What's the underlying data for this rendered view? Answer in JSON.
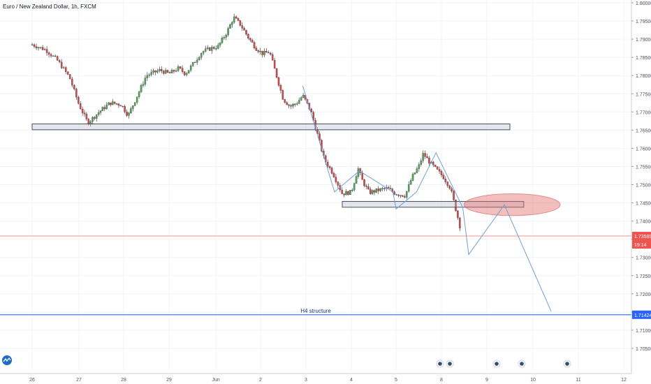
{
  "chart_data": {
    "type": "candlestick",
    "title": "Euro / New Zealand Dollar, 1h, FXCM",
    "xlabel": "",
    "ylabel": "",
    "ylim": [
      1.7025,
      1.8
    ],
    "grid": true,
    "y_ticks": [
      "1.80000",
      "1.79500",
      "1.79000",
      "1.78500",
      "1.78000",
      "1.77500",
      "1.77000",
      "1.76500",
      "1.76000",
      "1.75500",
      "1.75000",
      "1.74500",
      "1.74000",
      "1.73500",
      "1.73000",
      "1.72500",
      "1.72000",
      "1.71500",
      "1.71000",
      "1.70500"
    ],
    "x_ticks": [
      "26",
      "27",
      "28",
      "29",
      "Jun",
      "2",
      "3",
      "4",
      "5",
      "8",
      "9",
      "10",
      "11",
      "12"
    ],
    "last_price": "1.73589",
    "countdown": "19:14",
    "level_price": "1.71424",
    "annotation": "H4 structure",
    "zones": [
      {
        "from_day": 25.0,
        "to_day": 35.5,
        "y_low": 1.7651,
        "y_high": 1.7667
      },
      {
        "from_day": 31.8,
        "to_day": 35.8,
        "y_low": 1.7438,
        "y_high": 1.7454
      }
    ],
    "target_zone": {
      "from_day": 34.5,
      "to_day": 36.6,
      "y_low": 1.7415,
      "y_high": 1.7475
    },
    "horizontal_level": 1.71424,
    "projection_path": [
      [
        30.93,
        1.7772
      ],
      [
        31.63,
        1.748
      ],
      [
        32.18,
        1.7538
      ],
      [
        32.93,
        1.748
      ],
      [
        33.0,
        1.7433
      ],
      [
        33.45,
        1.748
      ],
      [
        33.88,
        1.7588
      ],
      [
        34.47,
        1.7437
      ],
      [
        34.6,
        1.7308
      ],
      [
        35.38,
        1.7445
      ],
      [
        36.4,
        1.7152
      ]
    ],
    "candle_path": [
      [
        25.0,
        1.7885
      ],
      [
        25.3,
        1.787
      ],
      [
        25.55,
        1.784
      ],
      [
        25.8,
        1.7795
      ],
      [
        26.0,
        1.772
      ],
      [
        26.2,
        1.767
      ],
      [
        26.45,
        1.77
      ],
      [
        26.7,
        1.7725
      ],
      [
        26.95,
        1.772
      ],
      [
        27.1,
        1.769
      ],
      [
        27.3,
        1.7745
      ],
      [
        27.5,
        1.78
      ],
      [
        27.8,
        1.7815
      ],
      [
        28.0,
        1.7805
      ],
      [
        28.2,
        1.782
      ],
      [
        28.35,
        1.7805
      ],
      [
        28.5,
        1.783
      ],
      [
        28.7,
        1.7865
      ],
      [
        28.9,
        1.7875
      ],
      [
        29.05,
        1.788
      ],
      [
        29.25,
        1.792
      ],
      [
        29.4,
        1.796
      ],
      [
        29.55,
        1.794
      ],
      [
        29.75,
        1.79
      ],
      [
        29.9,
        1.7875
      ],
      [
        30.05,
        1.786
      ],
      [
        30.2,
        1.7865
      ],
      [
        30.35,
        1.78
      ],
      [
        30.5,
        1.7735
      ],
      [
        30.65,
        1.7715
      ],
      [
        30.8,
        1.7725
      ],
      [
        30.93,
        1.7745
      ],
      [
        31.1,
        1.7705
      ],
      [
        31.25,
        1.764
      ],
      [
        31.4,
        1.757
      ],
      [
        31.6,
        1.753
      ],
      [
        31.8,
        1.7475
      ],
      [
        32.0,
        1.748
      ],
      [
        32.15,
        1.7545
      ],
      [
        32.25,
        1.751
      ],
      [
        32.4,
        1.7478
      ],
      [
        32.6,
        1.7485
      ],
      [
        32.8,
        1.749
      ],
      [
        33.0,
        1.7475
      ],
      [
        33.2,
        1.747
      ],
      [
        33.35,
        1.752
      ],
      [
        33.5,
        1.755
      ],
      [
        33.6,
        1.7585
      ],
      [
        33.75,
        1.756
      ],
      [
        33.9,
        1.754
      ],
      [
        34.05,
        1.752
      ],
      [
        34.2,
        1.749
      ],
      [
        34.3,
        1.744
      ],
      [
        34.38,
        1.74
      ],
      [
        34.45,
        1.7362
      ]
    ]
  }
}
